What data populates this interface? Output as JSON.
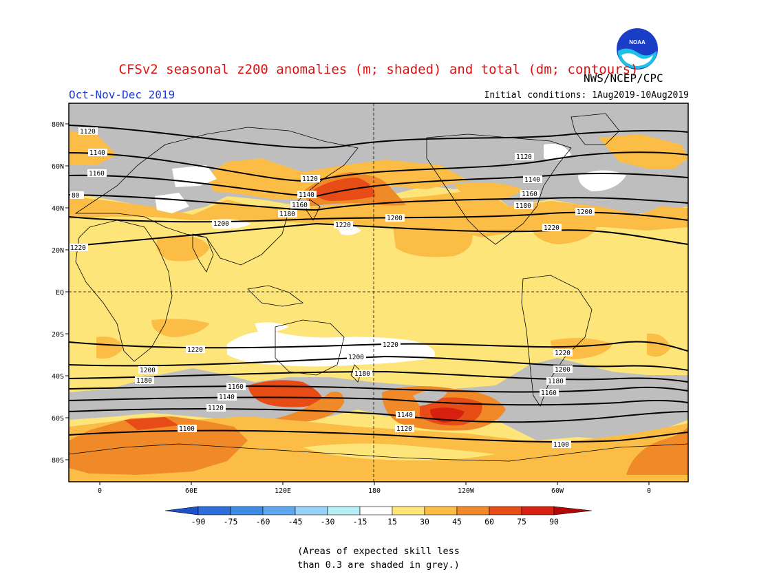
{
  "header": {
    "title": "CFSv2 seasonal z200 anomalies (m; shaded) and total (dm; contours)",
    "season": "Oct-Nov-Dec 2019",
    "source": "NWS/NCEP/CPC",
    "initial_conditions": "Initial conditions: 1Aug2019-10Aug2019",
    "logo_text": "NOAA"
  },
  "axes": {
    "lat_labels": [
      "80N",
      "60N",
      "40N",
      "20N",
      "EQ",
      "20S",
      "40S",
      "60S",
      "80S"
    ],
    "lon_labels": [
      "0",
      "60E",
      "120E",
      "180",
      "120W",
      "60W",
      "0"
    ]
  },
  "colors": {
    "grey_mask": "#bebebe",
    "white": "#ffffff",
    "c15": "#fde57a",
    "c30": "#fbbd46",
    "c45": "#f08a28",
    "c60": "#e84c16",
    "c75": "#d82010",
    "c90": "#b40808",
    "neg15": "#b6f0f6",
    "neg30": "#96d2fa",
    "neg45": "#5fa8f0",
    "neg60": "#3c8ce6",
    "neg75": "#2d6edc",
    "neg90": "#1e50c8",
    "title_red": "#e01010",
    "season_blue": "#1e3cd2",
    "contour": "#000000",
    "coast": "#000000"
  },
  "colorbar": {
    "labels": [
      "-90",
      "-75",
      "-60",
      "-45",
      "-30",
      "-15",
      "15",
      "30",
      "45",
      "60",
      "75",
      "90"
    ]
  },
  "contour_labels": {
    "nh": [
      "1120",
      "1140",
      "1160",
      "80",
      "1200",
      "1220",
      "1120",
      "1140",
      "1160",
      "1180",
      "1200",
      "1220",
      "1120",
      "1140",
      "1160",
      "1180",
      "1200",
      "1220"
    ],
    "sh": [
      "1220",
      "1200",
      "1180",
      "1160",
      "1140",
      "1120",
      "1100",
      "1220",
      "1200",
      "1180",
      "1140",
      "1120",
      "1220",
      "1200",
      "1180",
      "1160",
      "1100"
    ]
  },
  "note": {
    "line1": "(Areas of expected skill less",
    "line2": "than 0.3 are shaded in grey.)"
  }
}
